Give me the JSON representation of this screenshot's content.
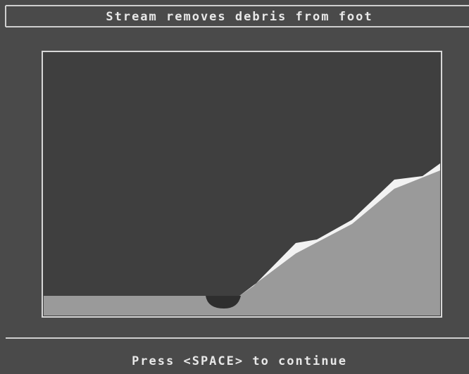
{
  "header": {
    "title": "Stream removes debris from foot"
  },
  "footer": {
    "prompt": "Press <SPACE> to continue"
  }
}
